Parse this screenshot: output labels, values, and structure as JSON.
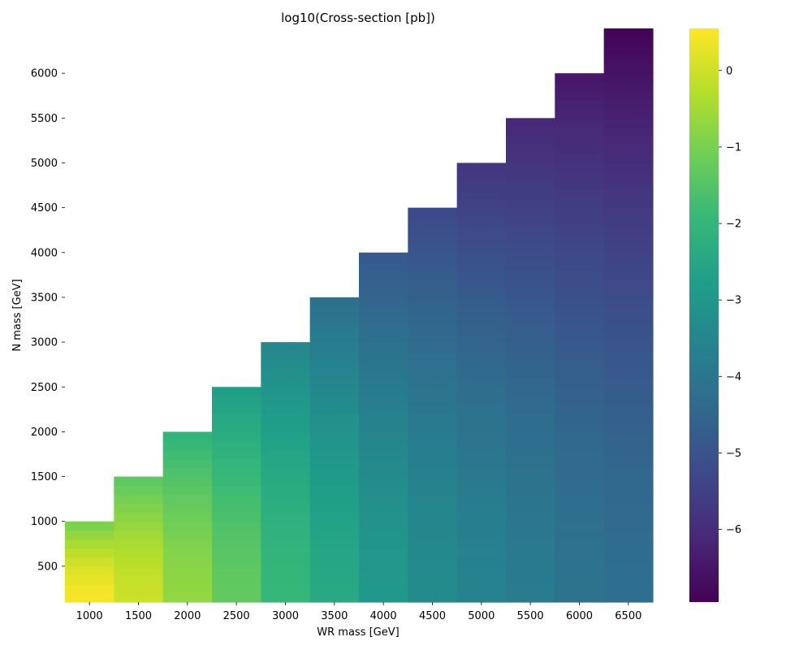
{
  "chart_data": {
    "type": "heatmap",
    "title": "log10(Cross-section [pb])",
    "xlabel": "WR mass [GeV]",
    "ylabel": "N mass [GeV]",
    "x_categories": [
      "1000",
      "1500",
      "2000",
      "2500",
      "3000",
      "3500",
      "4000",
      "4500",
      "5000",
      "5500",
      "6000",
      "6500"
    ],
    "x_values": [
      1000,
      1500,
      2000,
      2500,
      3000,
      3500,
      4000,
      4500,
      5000,
      5500,
      6000,
      6500
    ],
    "y_tick_labels": [
      "500",
      "1000",
      "1500",
      "2000",
      "2500",
      "3000",
      "3500",
      "4000",
      "4500",
      "5000",
      "5500",
      "6000"
    ],
    "y_tick_values": [
      500,
      1000,
      1500,
      2000,
      2500,
      3000,
      3500,
      4000,
      4500,
      5000,
      5500,
      6000
    ],
    "ylim": [
      100,
      6500
    ],
    "y_bin_size": 100,
    "n_min": 100,
    "n_max_per_column": [
      1000,
      1500,
      2000,
      2500,
      3000,
      3500,
      4000,
      4500,
      5000,
      5500,
      6000,
      6500
    ],
    "value_at_n_min": [
      0.45,
      -0.05,
      -0.7,
      -1.3,
      -1.95,
      -2.45,
      -2.95,
      -3.35,
      -3.6,
      -3.85,
      -4.1,
      -4.25
    ],
    "value_at_n_max": [
      -0.95,
      -1.35,
      -2.05,
      -2.75,
      -3.45,
      -4.15,
      -4.85,
      -5.25,
      -5.75,
      -6.1,
      -6.45,
      -6.85
    ],
    "colorbar": {
      "vmin": -6.95,
      "vmax": 0.55,
      "tick_values": [
        0,
        -1,
        -2,
        -3,
        -4,
        -5,
        -6
      ],
      "tick_labels": [
        "0",
        "−1",
        "−2",
        "−3",
        "−4",
        "−5",
        "−6"
      ],
      "colormap": "viridis",
      "stops": [
        "#440154",
        "#482878",
        "#3e4989",
        "#31688e",
        "#26828e",
        "#1f9e89",
        "#35b779",
        "#6ece58",
        "#b5de2b",
        "#fde725"
      ]
    },
    "grid": false,
    "legend": "none"
  }
}
